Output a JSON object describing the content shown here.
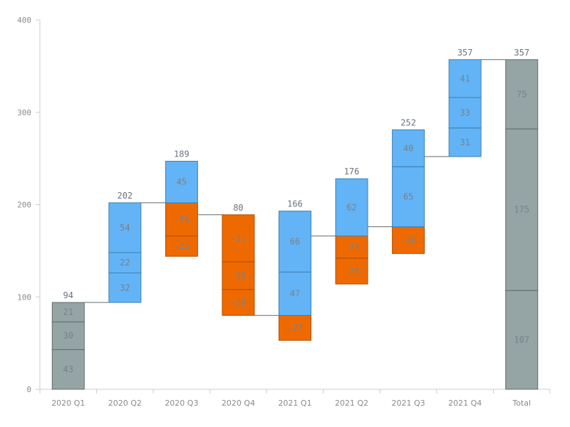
{
  "chart_data": {
    "type": "waterfall",
    "ylim": [
      0,
      400
    ],
    "yticks": [
      0,
      100,
      200,
      300,
      400
    ],
    "grid": false,
    "colors": {
      "total": "#95a5a6",
      "increase": "#63b4f6",
      "decrease": "#ee6a00"
    },
    "categories": [
      "2020 Q1",
      "2020 Q2",
      "2020 Q3",
      "2020 Q4",
      "2021 Q1",
      "2021 Q2",
      "2021 Q3",
      "2021 Q4",
      "Total"
    ],
    "columns": [
      {
        "category": "2020 Q1",
        "kind": "total",
        "segments": [
          43,
          30,
          21
        ],
        "end": 94
      },
      {
        "category": "2020 Q2",
        "kind": "delta",
        "segments": [
          32,
          22,
          54
        ],
        "end": 202
      },
      {
        "category": "2020 Q3",
        "kind": "delta",
        "segments": [
          -36,
          -22,
          45
        ],
        "end": 189
      },
      {
        "category": "2020 Q4",
        "kind": "delta",
        "segments": [
          -51,
          -30,
          -28
        ],
        "end": 80
      },
      {
        "category": "2021 Q1",
        "kind": "delta",
        "segments": [
          -27,
          47,
          66
        ],
        "end": 166
      },
      {
        "category": "2021 Q2",
        "kind": "delta",
        "segments": [
          -24,
          -28,
          62
        ],
        "end": 176
      },
      {
        "category": "2021 Q3",
        "kind": "delta",
        "segments": [
          -29,
          65,
          40
        ],
        "end": 252
      },
      {
        "category": "2021 Q4",
        "kind": "delta",
        "segments": [
          31,
          33,
          41
        ],
        "end": 357
      },
      {
        "category": "Total",
        "kind": "total",
        "segments": [
          107,
          175,
          75
        ],
        "end": 357
      }
    ]
  }
}
